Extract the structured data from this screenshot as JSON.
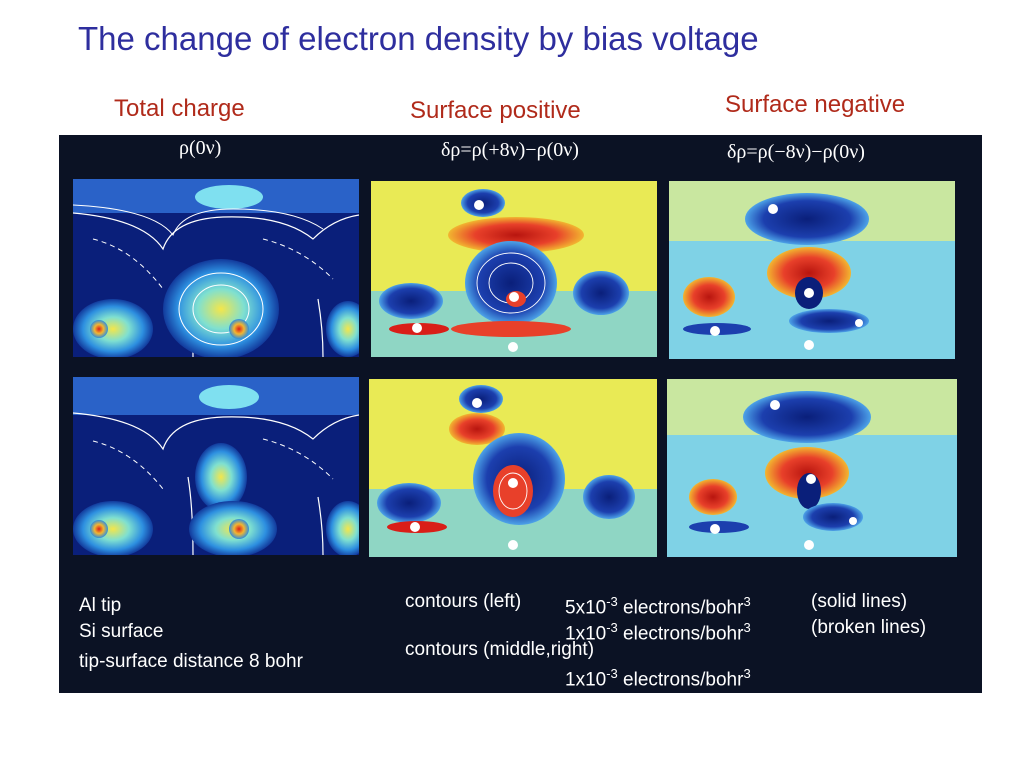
{
  "title": "The change of electron density by bias voltage",
  "columns": {
    "total": "Total charge",
    "positive": "Surface positive",
    "negative": "Surface negative"
  },
  "formulas": {
    "left": "ρ(0ν)",
    "middle": "δρ=ρ(+8ν)−ρ(0ν)",
    "right": "δρ=ρ(−8ν)−ρ(0ν)"
  },
  "legend": {
    "left_lines": [
      "Al tip",
      "Si surface",
      "tip-surface distance 8 bohr"
    ],
    "contours_left_label": "contours (left)",
    "contours_left_value_1": "5x10",
    "contours_left_exp_1": "-3",
    "contours_left_unit_1": "electrons/bohr",
    "contours_left_unit_exp_1": "3",
    "contours_left_style_1": "(solid lines)",
    "contours_left_value_2": "1x10",
    "contours_left_exp_2": "-3",
    "contours_left_unit_2": "electrons/bohr",
    "contours_left_unit_exp_2": "3",
    "contours_left_style_2": "(broken lines)",
    "contours_mid_label": "contours (middle,right)",
    "contours_mid_value": "1x10",
    "contours_mid_exp": "-3",
    "contours_mid_unit": "electrons/bohr",
    "contours_mid_unit_exp": "3"
  },
  "colors": {
    "title": "#2e2e9e",
    "column_labels": "#b02a1a",
    "figure_background": "#0b1224",
    "density_low": "#0a1f7a",
    "density_high": "#d91e18",
    "difference_mid": "#f2e84b"
  }
}
